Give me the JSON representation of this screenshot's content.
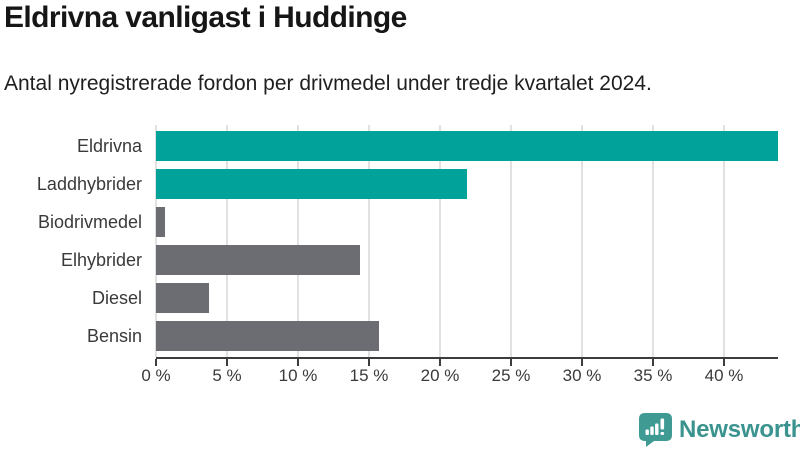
{
  "chart_data": {
    "type": "bar",
    "orientation": "horizontal",
    "title": "Eldrivna vanligast i Huddinge",
    "subtitle": "Antal nyregistrerade fordon per drivmedel under tredje kvartalet 2024.",
    "categories": [
      "Eldrivna",
      "Laddhybrider",
      "Biodrivmedel",
      "Elhybrider",
      "Diesel",
      "Bensin"
    ],
    "values": [
      43.8,
      21.9,
      0.6,
      14.4,
      3.7,
      15.7
    ],
    "unit": "%",
    "bar_colors": [
      "#00a29a",
      "#00a29a",
      "#6c6c73",
      "#6c6c73",
      "#6c6c73",
      "#6c6c73"
    ],
    "accent_color": "#00a29a",
    "muted_color": "#6c6c73",
    "x_ticks": [
      {
        "value": 0,
        "label": "0 %"
      },
      {
        "value": 5,
        "label": "5 %"
      },
      {
        "value": 10,
        "label": "10 %"
      },
      {
        "value": 15,
        "label": "15 %"
      },
      {
        "value": 20,
        "label": "20 %"
      },
      {
        "value": 25,
        "label": "25 %"
      },
      {
        "value": 30,
        "label": "30 %"
      },
      {
        "value": 35,
        "label": "35 %"
      },
      {
        "value": 40,
        "label": "40 %"
      }
    ],
    "xlim": [
      0,
      43.8
    ],
    "xlabel": "",
    "ylabel": "",
    "grid": true,
    "legend": "none",
    "gridline_color": "#e1e1e1",
    "axis_color": "#3d3d3d"
  },
  "footer": {
    "brand": "Newsworthy",
    "logo_icon": "bar-chart-speech-bubble-icon",
    "logo_color": "#3f9a94",
    "text_color": "#3a938e"
  }
}
